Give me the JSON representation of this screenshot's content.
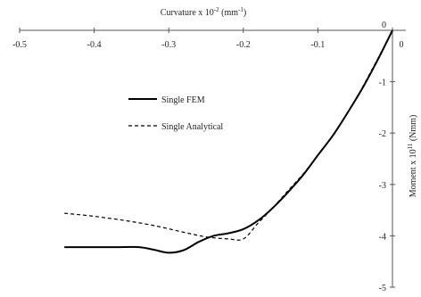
{
  "chart_data": {
    "type": "line",
    "title": "",
    "xlabel": {
      "base": "Curvature x 10",
      "sup": "-2",
      "unit_prefix": " (mm",
      "unit_sup": "-1",
      "unit_suffix": ")"
    },
    "ylabel": {
      "base": "Moment x 10",
      "sup": "11",
      "unit": " (Nmm)"
    },
    "xlim": [
      -0.5,
      0
    ],
    "ylim": [
      -5,
      0
    ],
    "x_ticks": [
      -0.5,
      -0.4,
      -0.3,
      -0.2,
      -0.1,
      0
    ],
    "x_tick_labels": [
      "-0.5",
      "-0.4",
      "-0.3",
      "-0.2",
      "-0.1",
      "0"
    ],
    "y_ticks": [
      0,
      -1,
      -2,
      -3,
      -4,
      -5
    ],
    "y_tick_labels": [
      "0",
      "-1",
      "-2",
      "-3",
      "-4",
      "-5"
    ],
    "legend_position": "center-left",
    "grid": false,
    "series": [
      {
        "name": "Single FEM",
        "style": "solid",
        "color": "#000000",
        "points": [
          [
            -0.44,
            -4.22
          ],
          [
            -0.4,
            -4.22
          ],
          [
            -0.37,
            -4.22
          ],
          [
            -0.34,
            -4.22
          ],
          [
            -0.32,
            -4.27
          ],
          [
            -0.3,
            -4.33
          ],
          [
            -0.28,
            -4.28
          ],
          [
            -0.26,
            -4.12
          ],
          [
            -0.24,
            -4.0
          ],
          [
            -0.22,
            -3.95
          ],
          [
            -0.2,
            -3.87
          ],
          [
            -0.18,
            -3.7
          ],
          [
            -0.16,
            -3.45
          ],
          [
            -0.14,
            -3.15
          ],
          [
            -0.12,
            -2.82
          ],
          [
            -0.1,
            -2.43
          ],
          [
            -0.08,
            -2.05
          ],
          [
            -0.06,
            -1.6
          ],
          [
            -0.04,
            -1.12
          ],
          [
            -0.02,
            -0.58
          ],
          [
            0,
            0
          ]
        ]
      },
      {
        "name": "Single Analytical",
        "style": "dashed",
        "color": "#000000",
        "points": [
          [
            -0.44,
            -3.56
          ],
          [
            -0.4,
            -3.62
          ],
          [
            -0.36,
            -3.7
          ],
          [
            -0.32,
            -3.8
          ],
          [
            -0.28,
            -3.93
          ],
          [
            -0.25,
            -4.02
          ],
          [
            -0.22,
            -4.06
          ],
          [
            -0.2,
            -4.06
          ],
          [
            -0.18,
            -3.75
          ],
          [
            -0.16,
            -3.45
          ],
          [
            -0.14,
            -3.12
          ],
          [
            -0.12,
            -2.8
          ],
          [
            -0.1,
            -2.43
          ],
          [
            -0.08,
            -2.05
          ],
          [
            -0.06,
            -1.6
          ],
          [
            -0.04,
            -1.1
          ],
          [
            -0.02,
            -0.56
          ],
          [
            0,
            0
          ]
        ]
      }
    ]
  }
}
